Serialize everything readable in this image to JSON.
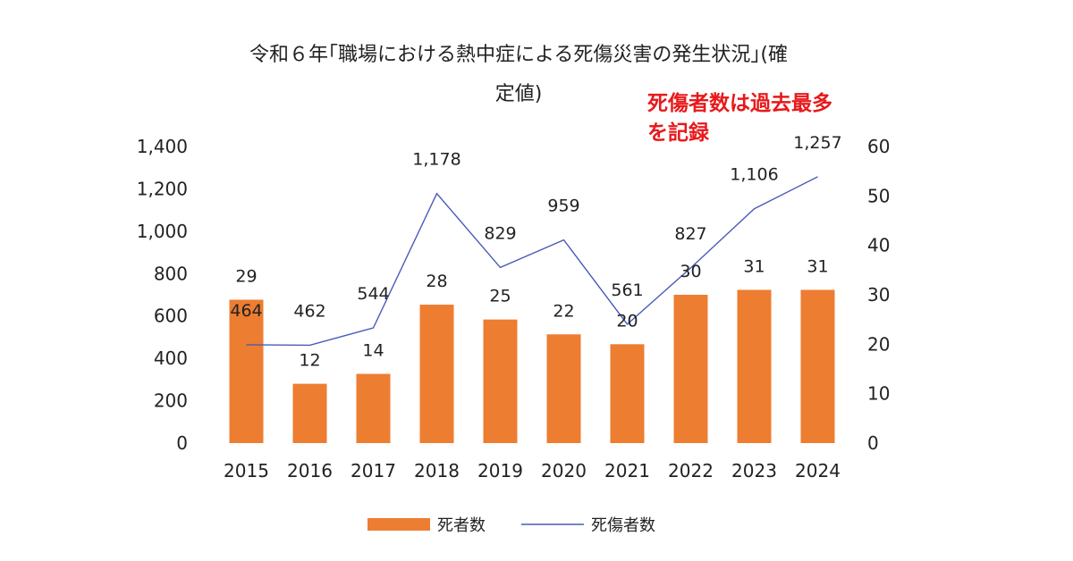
{
  "chart_data": {
    "type": "bar",
    "title_line1": "令和６年｢職場における熱中症による死傷災害の発生状況｣(確",
    "title_line2": "定値)",
    "annotation_line1": "死傷者数は過去最多",
    "annotation_line2": "を記録",
    "categories": [
      "2015",
      "2016",
      "2017",
      "2018",
      "2019",
      "2020",
      "2021",
      "2022",
      "2023",
      "2024"
    ],
    "series": [
      {
        "name": "死者数",
        "type": "bar",
        "axis": "right",
        "color": "#ed7d31",
        "values": [
          29,
          12,
          14,
          28,
          25,
          22,
          20,
          30,
          31,
          31
        ],
        "value_labels": [
          "29",
          "12",
          "14",
          "28",
          "25",
          "22",
          "20",
          "30",
          "31",
          "31"
        ]
      },
      {
        "name": "死傷者数",
        "type": "line",
        "axis": "left",
        "color": "#4a5bb8",
        "values": [
          464,
          462,
          544,
          1178,
          829,
          959,
          561,
          827,
          1106,
          1257
        ],
        "value_labels": [
          "464",
          "462",
          "544",
          "1,178",
          "829",
          "959",
          "561",
          "827",
          "1,106",
          "1,257"
        ]
      }
    ],
    "y_left": {
      "min": 0,
      "max": 1400,
      "ticks": [
        "0",
        "200",
        "400",
        "600",
        "800",
        "1,000",
        "1,200",
        "1,400"
      ]
    },
    "y_right": {
      "min": 0,
      "max": 60,
      "ticks": [
        "0",
        "10",
        "20",
        "30",
        "40",
        "50",
        "60"
      ]
    },
    "legend": {
      "position": "bottom",
      "entries": [
        "死者数",
        "死傷者数"
      ]
    },
    "grid": false
  }
}
